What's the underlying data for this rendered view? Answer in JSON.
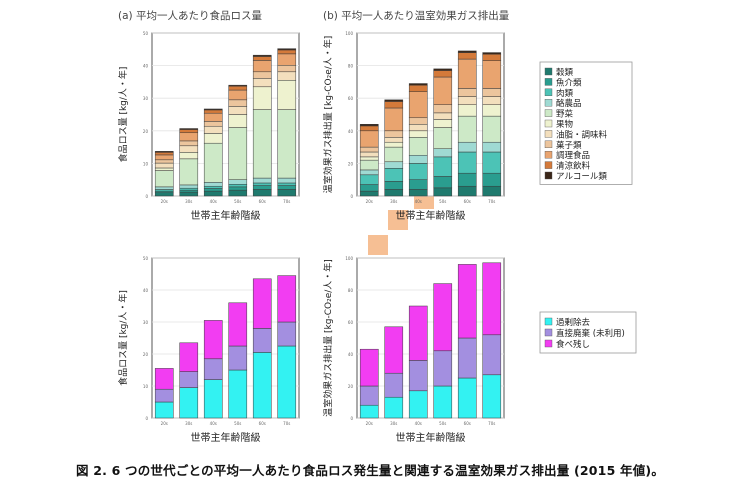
{
  "caption": "図 2. 6 つの世代ごとの平均一人あたり食品ロス発生量と関連する温室効果ガス排出量 (2015 年値)。",
  "colors": {
    "food_categories": [
      "#1f7a6e",
      "#2a9d8f",
      "#4cc3b6",
      "#9fdad3",
      "#cde9c7",
      "#eef2cf",
      "#f3dfbd",
      "#ecc59d",
      "#e9a46f",
      "#d47a3a",
      "#3a2618"
    ],
    "loss_types": [
      "#33f2f2",
      "#a38fe0",
      "#f23df2"
    ],
    "decoration": "#f5b888"
  },
  "food_legend": [
    "穀類",
    "魚介類",
    "肉類",
    "酪農品",
    "野菜",
    "果物",
    "油脂・調味料",
    "菓子類",
    "調理食品",
    "清涼飲料",
    "アルコール類"
  ],
  "loss_legend": [
    "過剰除去",
    "直接廃棄 (未利用)",
    "食べ残し"
  ],
  "chart_data": [
    {
      "type": "bar",
      "stacked": true,
      "title": "(a) 平均一人あたり食品ロス量",
      "xlabel": "世帯主年齢階級",
      "ylabel": "食品ロス量 [kg/人・年]",
      "categories": [
        "20s",
        "30s",
        "40s",
        "50s",
        "60s",
        "70s"
      ],
      "ylim": [
        0,
        50
      ],
      "series": [
        {
          "name": "穀類",
          "values": [
            1.0,
            1.2,
            1.5,
            1.8,
            2.0,
            2.0
          ]
        },
        {
          "name": "魚介類",
          "values": [
            0.5,
            0.6,
            0.8,
            1.0,
            1.2,
            1.2
          ]
        },
        {
          "name": "肉類",
          "values": [
            0.5,
            0.6,
            0.7,
            0.8,
            0.8,
            0.8
          ]
        },
        {
          "name": "酪農品",
          "values": [
            0.8,
            1.0,
            1.2,
            1.4,
            1.5,
            1.5
          ]
        },
        {
          "name": "野菜",
          "values": [
            5.0,
            8.0,
            12.0,
            16.0,
            21.0,
            21.0
          ]
        },
        {
          "name": "果物",
          "values": [
            0.8,
            2.0,
            3.0,
            4.0,
            7.0,
            9.0
          ]
        },
        {
          "name": "油脂・調味料",
          "values": [
            1.5,
            2.0,
            2.2,
            2.5,
            2.6,
            2.6
          ]
        },
        {
          "name": "菓子類",
          "values": [
            1.0,
            1.5,
            1.5,
            2.0,
            2.0,
            2.0
          ]
        },
        {
          "name": "調理食品",
          "values": [
            1.5,
            2.5,
            2.5,
            3.0,
            3.5,
            3.5
          ]
        },
        {
          "name": "清涼飲料",
          "values": [
            0.8,
            1.0,
            1.0,
            1.2,
            1.2,
            1.2
          ]
        },
        {
          "name": "アルコール類",
          "values": [
            0.3,
            0.3,
            0.3,
            0.3,
            0.4,
            0.4
          ]
        }
      ]
    },
    {
      "type": "bar",
      "stacked": true,
      "title": "(b) 平均一人あたり温室効果ガス排出量",
      "xlabel": "世帯主年齢階級",
      "ylabel": "温室効果ガス排出量 [kg-CO₂e/人・年]",
      "categories": [
        "20s",
        "30s",
        "40s",
        "50s",
        "60s",
        "70s"
      ],
      "ylim": [
        0,
        100
      ],
      "series": [
        {
          "name": "穀類",
          "values": [
            3,
            4,
            4,
            5,
            6,
            6
          ]
        },
        {
          "name": "魚介類",
          "values": [
            4,
            5,
            6,
            7,
            8,
            8
          ]
        },
        {
          "name": "肉類",
          "values": [
            6,
            8,
            10,
            12,
            13,
            13
          ]
        },
        {
          "name": "酪農品",
          "values": [
            3,
            4,
            5,
            5,
            6,
            6
          ]
        },
        {
          "name": "野菜",
          "values": [
            6,
            9,
            11,
            13,
            16,
            16
          ]
        },
        {
          "name": "果物",
          "values": [
            2,
            3,
            4,
            5,
            7,
            7
          ]
        },
        {
          "name": "油脂・調味料",
          "values": [
            3,
            3,
            4,
            4,
            5,
            5
          ]
        },
        {
          "name": "菓子類",
          "values": [
            3,
            4,
            4,
            5,
            5,
            5
          ]
        },
        {
          "name": "調理食品",
          "values": [
            10,
            14,
            16,
            17,
            18,
            17
          ]
        },
        {
          "name": "清涼飲料",
          "values": [
            3,
            4,
            4,
            4,
            4,
            4
          ]
        },
        {
          "name": "アルコール類",
          "values": [
            1,
            1,
            1,
            1,
            1,
            1
          ]
        }
      ]
    },
    {
      "type": "bar",
      "stacked": true,
      "xlabel": "世帯主年齢階級",
      "ylabel": "食品ロス量 [kg/人・年]",
      "categories": [
        "20s",
        "30s",
        "40s",
        "50s",
        "60s",
        "70s"
      ],
      "ylim": [
        0,
        50
      ],
      "series": [
        {
          "name": "過剰除去",
          "values": [
            5.0,
            9.5,
            12.0,
            15.0,
            20.5,
            22.5
          ]
        },
        {
          "name": "直接廃棄 (未利用)",
          "values": [
            4.0,
            5.0,
            6.5,
            7.5,
            7.5,
            7.5
          ]
        },
        {
          "name": "食べ残し",
          "values": [
            6.5,
            9.0,
            12.0,
            13.5,
            15.5,
            14.5
          ]
        }
      ]
    },
    {
      "type": "bar",
      "stacked": true,
      "xlabel": "世帯主年齢階級",
      "ylabel": "温室効果ガス排出量 [kg-CO₂e/人・年]",
      "categories": [
        "20s",
        "30s",
        "40s",
        "50s",
        "60s",
        "70s"
      ],
      "ylim": [
        0,
        100
      ],
      "series": [
        {
          "name": "過剰除去",
          "values": [
            8,
            13,
            17,
            20,
            25,
            27
          ]
        },
        {
          "name": "直接廃棄 (未利用)",
          "values": [
            12,
            15,
            19,
            22,
            25,
            25
          ]
        },
        {
          "name": "食べ残し",
          "values": [
            23,
            29,
            34,
            42,
            46,
            45
          ]
        }
      ]
    }
  ]
}
